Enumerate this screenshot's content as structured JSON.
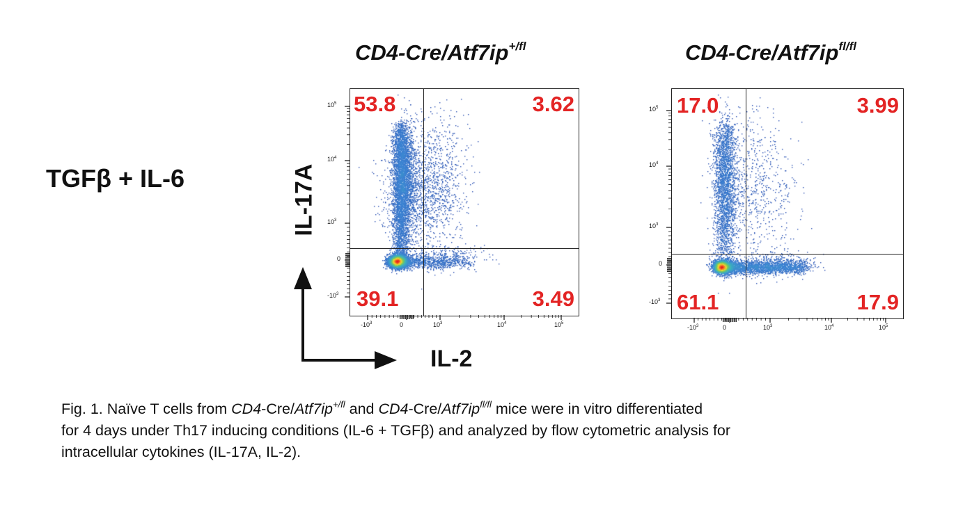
{
  "figure": {
    "condition_label": "TGFβ + IL-6",
    "y_axis_label": "IL-17A",
    "x_axis_label": "IL-2",
    "caption": {
      "line1_a": "Fig. 1. Naïve T cells from ",
      "line1_b": "CD4",
      "line1_c": "-Cre/",
      "line1_d": "Atf7ip",
      "line1_d_sup": "+/fl",
      "line1_e": " and ",
      "line1_f": "CD4",
      "line1_g": "-Cre/",
      "line1_h": "Atf7ip",
      "line1_h_sup": "fl/fl",
      "line1_i": " mice were in vitro differentiated",
      "line2": "for 4 days under Th17 inducing conditions (IL-6 + TGFβ)  and analyzed by flow cytometric analysis for",
      "line3": "intracellular cytokines (IL-17A, IL-2)."
    }
  },
  "colors": {
    "quadrant_text": "#e32424",
    "axis": "#222222"
  },
  "chart_data": [
    {
      "type": "scatter",
      "title_main": "CD4-Cre/Atf7ip",
      "title_sup": "+/fl",
      "x_scale": "biexponential",
      "y_scale": "biexponential",
      "x_tick_labels": [
        {
          "base": "-10",
          "exp": "3"
        },
        {
          "base": "0",
          "exp": ""
        },
        {
          "base": "10",
          "exp": "3"
        },
        {
          "base": "10",
          "exp": "4"
        },
        {
          "base": "10",
          "exp": "5"
        }
      ],
      "y_tick_labels": [
        {
          "base": "10",
          "exp": "5"
        },
        {
          "base": "10",
          "exp": "4"
        },
        {
          "base": "10",
          "exp": "3"
        },
        {
          "base": "0",
          "exp": ""
        },
        {
          "base": "-10",
          "exp": "3"
        }
      ],
      "quadrants": {
        "upper_left": "53.8",
        "upper_right": "3.62",
        "lower_left": "39.1",
        "lower_right": "3.49"
      }
    },
    {
      "type": "scatter",
      "title_main": "CD4-Cre/Atf7ip",
      "title_sup": "fl/fl",
      "x_scale": "biexponential",
      "y_scale": "biexponential",
      "x_tick_labels": [
        {
          "base": "-10",
          "exp": "3"
        },
        {
          "base": "0",
          "exp": ""
        },
        {
          "base": "10",
          "exp": "3"
        },
        {
          "base": "10",
          "exp": "4"
        },
        {
          "base": "10",
          "exp": "5"
        }
      ],
      "y_tick_labels": [
        {
          "base": "10",
          "exp": "5"
        },
        {
          "base": "10",
          "exp": "4"
        },
        {
          "base": "10",
          "exp": "3"
        },
        {
          "base": "0",
          "exp": ""
        },
        {
          "base": "-10",
          "exp": "3"
        }
      ],
      "quadrants": {
        "upper_left": "17.0",
        "upper_right": "3.99",
        "lower_left": "61.1",
        "lower_right": "17.9"
      }
    }
  ]
}
